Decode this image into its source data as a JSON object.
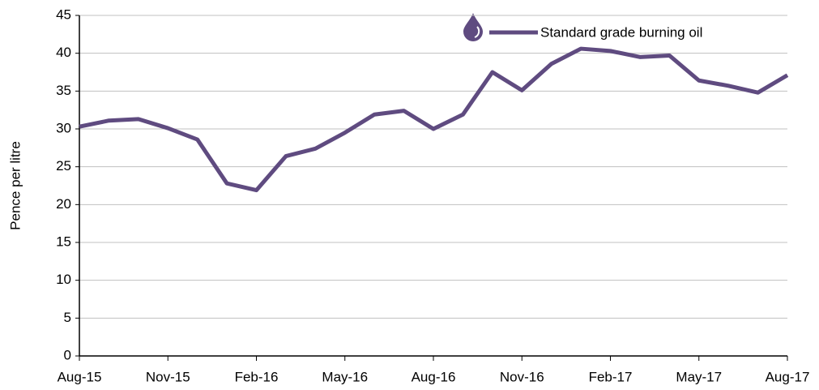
{
  "chart_data": {
    "type": "line",
    "y_label": "Pence per litre",
    "categories": [
      "Aug-15",
      null,
      null,
      "Nov-15",
      null,
      null,
      "Feb-16",
      null,
      null,
      "May-16",
      null,
      null,
      "Aug-16",
      null,
      null,
      "Nov-16",
      null,
      null,
      "Feb-17",
      null,
      null,
      "May-17",
      null,
      null,
      "Aug-17"
    ],
    "series": [
      {
        "name": "Standard grade burning oil",
        "color": "#5f4b80",
        "values": [
          30.3,
          31.1,
          31.3,
          30.1,
          28.6,
          22.8,
          21.9,
          26.4,
          27.4,
          29.5,
          31.9,
          32.4,
          30.0,
          31.9,
          37.5,
          35.1,
          38.6,
          40.6,
          40.3,
          39.5,
          39.7,
          36.4,
          35.7,
          34.8,
          37.1
        ]
      }
    ],
    "ylim": [
      0,
      45
    ],
    "yticks": [
      0,
      5,
      10,
      15,
      20,
      25,
      30,
      35,
      40,
      45
    ],
    "grid": true,
    "legend": "top-right"
  }
}
